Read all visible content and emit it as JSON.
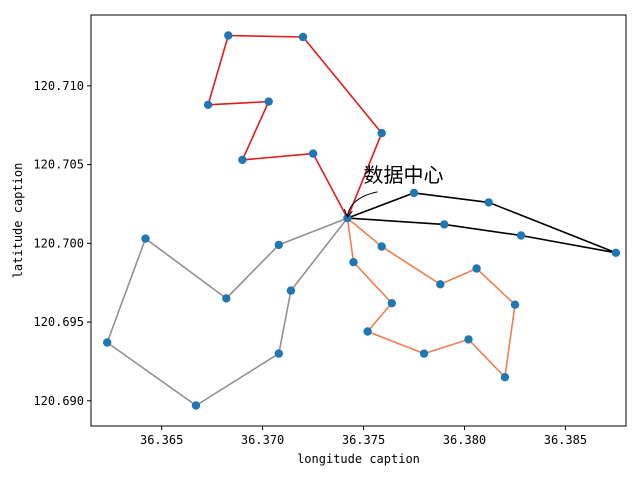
{
  "chart_data": {
    "type": "scatter",
    "title": "",
    "xlabel": "longitude caption",
    "ylabel": "latitude caption",
    "xlim": [
      36.3615,
      36.388
    ],
    "ylim": [
      120.6884,
      120.7145
    ],
    "xticks": [
      36.365,
      36.37,
      36.375,
      36.38,
      36.385
    ],
    "xtick_labels": [
      "36.365",
      "36.370",
      "36.375",
      "36.380",
      "36.385"
    ],
    "yticks": [
      120.69,
      120.695,
      120.7,
      120.705,
      120.71
    ],
    "ytick_labels": [
      "120.690",
      "120.695",
      "120.700",
      "120.705",
      "120.710"
    ],
    "grid": false,
    "annotation": {
      "text": "数据中心",
      "point": [
        36.3742,
        120.7016
      ],
      "text_position": [
        36.375,
        120.7039
      ]
    },
    "points": [
      {
        "x": 36.3742,
        "y": 120.7016
      },
      {
        "x": 36.3683,
        "y": 120.7132
      },
      {
        "x": 36.372,
        "y": 120.7131
      },
      {
        "x": 36.3673,
        "y": 120.7088
      },
      {
        "x": 36.3703,
        "y": 120.709
      },
      {
        "x": 36.369,
        "y": 120.7053
      },
      {
        "x": 36.3725,
        "y": 120.7057
      },
      {
        "x": 36.3759,
        "y": 120.707
      },
      {
        "x": 36.3775,
        "y": 120.7032
      },
      {
        "x": 36.3812,
        "y": 120.7026
      },
      {
        "x": 36.379,
        "y": 120.7012
      },
      {
        "x": 36.3828,
        "y": 120.7005
      },
      {
        "x": 36.3875,
        "y": 120.6994
      },
      {
        "x": 36.3759,
        "y": 120.6998
      },
      {
        "x": 36.3745,
        "y": 120.6988
      },
      {
        "x": 36.3764,
        "y": 120.6962
      },
      {
        "x": 36.3752,
        "y": 120.6944
      },
      {
        "x": 36.378,
        "y": 120.693
      },
      {
        "x": 36.3788,
        "y": 120.6974
      },
      {
        "x": 36.3806,
        "y": 120.6984
      },
      {
        "x": 36.3825,
        "y": 120.6961
      },
      {
        "x": 36.3802,
        "y": 120.6939
      },
      {
        "x": 36.382,
        "y": 120.6915
      },
      {
        "x": 36.3642,
        "y": 120.7003
      },
      {
        "x": 36.3623,
        "y": 120.6937
      },
      {
        "x": 36.3667,
        "y": 120.6897
      },
      {
        "x": 36.3708,
        "y": 120.693
      },
      {
        "x": 36.3714,
        "y": 120.697
      },
      {
        "x": 36.3708,
        "y": 120.6999
      },
      {
        "x": 36.3682,
        "y": 120.6965
      }
    ],
    "series": [
      {
        "color": "#e41a1c",
        "values": [
          [
            36.3742,
            120.7016
          ],
          [
            36.3725,
            120.7057
          ],
          [
            36.369,
            120.7053
          ],
          [
            36.3703,
            120.709
          ],
          [
            36.3673,
            120.7088
          ],
          [
            36.3683,
            120.7132
          ],
          [
            36.372,
            120.7131
          ],
          [
            36.3759,
            120.707
          ],
          [
            36.3742,
            120.7016
          ]
        ]
      },
      {
        "color": "#000000",
        "values": [
          [
            36.3742,
            120.7016
          ],
          [
            36.3775,
            120.7032
          ],
          [
            36.3812,
            120.7026
          ],
          [
            36.3875,
            120.6994
          ],
          [
            36.3828,
            120.7005
          ],
          [
            36.379,
            120.7012
          ],
          [
            36.3742,
            120.7016
          ]
        ]
      },
      {
        "color": "#f07f50",
        "values": [
          [
            36.3742,
            120.7016
          ],
          [
            36.3759,
            120.6998
          ],
          [
            36.3788,
            120.6974
          ],
          [
            36.3806,
            120.6984
          ],
          [
            36.3825,
            120.6961
          ],
          [
            36.382,
            120.6915
          ],
          [
            36.3802,
            120.6939
          ],
          [
            36.378,
            120.693
          ],
          [
            36.3752,
            120.6944
          ],
          [
            36.3764,
            120.6962
          ],
          [
            36.3745,
            120.6988
          ],
          [
            36.3742,
            120.7016
          ]
        ]
      },
      {
        "color": "#919191",
        "values": [
          [
            36.3742,
            120.7016
          ],
          [
            36.3708,
            120.6999
          ],
          [
            36.3682,
            120.6965
          ],
          [
            36.3642,
            120.7003
          ],
          [
            36.3623,
            120.6937
          ],
          [
            36.3667,
            120.6897
          ],
          [
            36.3708,
            120.693
          ],
          [
            36.3714,
            120.697
          ],
          [
            36.3742,
            120.7016
          ]
        ]
      }
    ],
    "point_color": "#1f77b4"
  }
}
